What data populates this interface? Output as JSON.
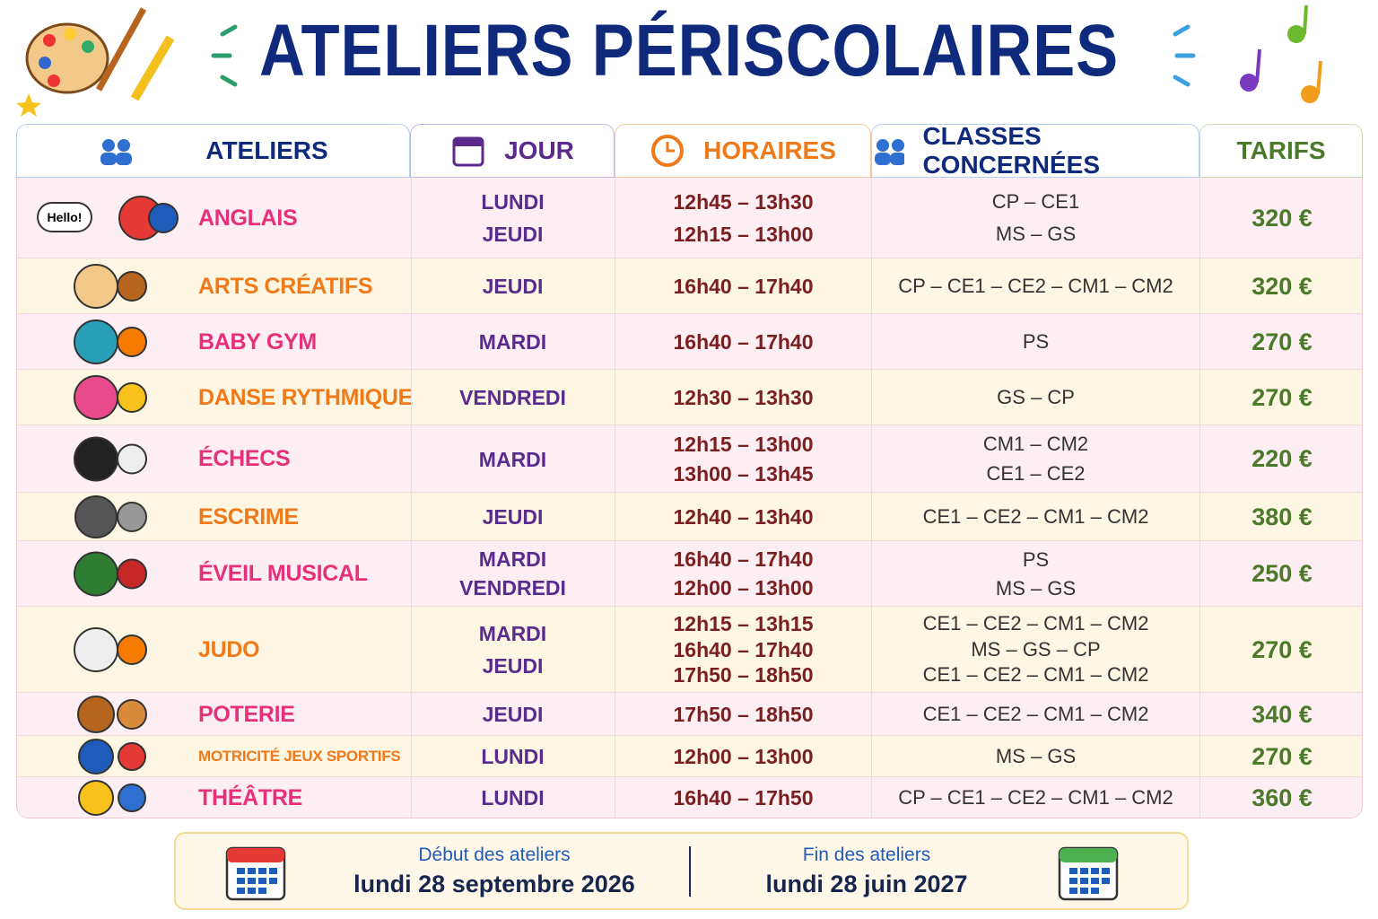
{
  "header": {
    "title": "ATELIERS PÉRISCOLAIRES"
  },
  "table": {
    "columns": [
      "ATELIERS",
      "JOUR",
      "HORAIRES",
      "CLASSES CONCERNÉES",
      "TARIFS"
    ],
    "rows": [
      {
        "name": "ANGLAIS",
        "icon_text": "Hello!",
        "jour": [
          "LUNDI",
          "JEUDI"
        ],
        "horaires": [
          "12h45 – 13h30",
          "12h15 – 13h00"
        ],
        "classes": [
          "CP – CE1",
          "MS – GS"
        ],
        "tarif": "320 €"
      },
      {
        "name": "ARTS CRÉATIFS",
        "jour": [
          "JEUDI"
        ],
        "horaires": [
          "16h40 – 17h40"
        ],
        "classes": [
          "CP – CE1 – CE2 – CM1 – CM2"
        ],
        "tarif": "320 €"
      },
      {
        "name": "BABY GYM",
        "jour": [
          "MARDI"
        ],
        "horaires": [
          "16h40 – 17h40"
        ],
        "classes": [
          "PS"
        ],
        "tarif": "270 €"
      },
      {
        "name": "DANSE RYTHMIQUE",
        "jour": [
          "VENDREDI"
        ],
        "horaires": [
          "12h30 – 13h30"
        ],
        "classes": [
          "GS – CP"
        ],
        "tarif": "270 €"
      },
      {
        "name": "ÉCHECS",
        "jour": [
          "MARDI"
        ],
        "horaires": [
          "12h15 – 13h00",
          "13h00 – 13h45"
        ],
        "classes": [
          "CM1 – CM2",
          "CE1 – CE2"
        ],
        "tarif": "220 €"
      },
      {
        "name": "ESCRIME",
        "jour": [
          "JEUDI"
        ],
        "horaires": [
          "12h40 – 13h40"
        ],
        "classes": [
          "CE1 – CE2 – CM1 – CM2"
        ],
        "tarif": "380 €"
      },
      {
        "name": "ÉVEIL MUSICAL",
        "jour": [
          "MARDI",
          "VENDREDI"
        ],
        "horaires": [
          "16h40 – 17h40",
          "12h00 – 13h00"
        ],
        "classes": [
          "PS",
          "MS – GS"
        ],
        "tarif": "250 €"
      },
      {
        "name": "JUDO",
        "jour": [
          "MARDI",
          "JEUDI"
        ],
        "horaires": [
          "12h15 – 13h15",
          "16h40 – 17h40",
          "17h50 – 18h50"
        ],
        "classes": [
          "CE1 – CE2 – CM1 – CM2",
          "MS – GS – CP",
          "CE1 – CE2 – CM1 – CM2"
        ],
        "tarif": "270 €"
      },
      {
        "name": "POTERIE",
        "jour": [
          "JEUDI"
        ],
        "horaires": [
          "17h50 – 18h50"
        ],
        "classes": [
          "CE1 – CE2 – CM1 – CM2"
        ],
        "tarif": "340 €"
      },
      {
        "name": "MOTRICITÉ JEUX SPORTIFS",
        "jour": [
          "LUNDI"
        ],
        "horaires": [
          "12h00 – 13h00"
        ],
        "classes": [
          "MS – GS"
        ],
        "tarif": "270 €"
      },
      {
        "name": "THÉÂTRE",
        "jour": [
          "LUNDI"
        ],
        "horaires": [
          "16h40 – 17h50"
        ],
        "classes": [
          "CP – CE1 – CE2 – CM1 – CM2"
        ],
        "tarif": "360 €"
      }
    ]
  },
  "footer": {
    "start_label": "Début des ateliers",
    "start_date": "lundi 28 septembre 2026",
    "end_label": "Fin des ateliers",
    "end_date": "lundi 28 juin 2027"
  }
}
